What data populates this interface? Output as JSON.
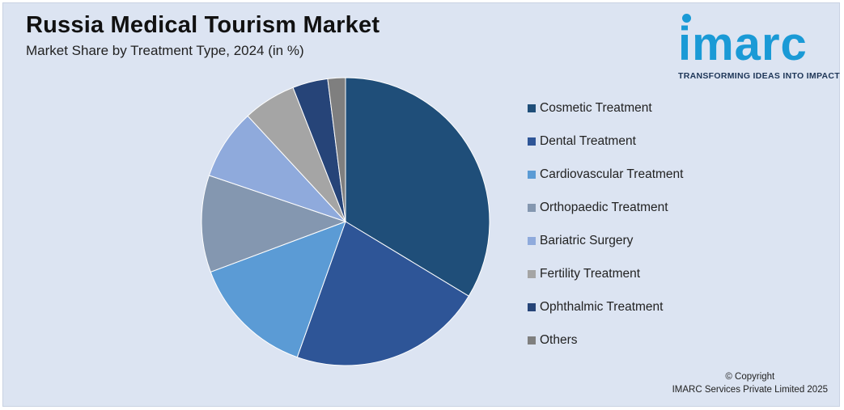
{
  "header": {
    "title": "Russia Medical Tourism Market",
    "subtitle": "Market Share by Treatment Type, 2024 (in %)"
  },
  "logo": {
    "wordmark": "imarc",
    "tagline": "TRANSFORMING IDEAS INTO IMPACT",
    "color": "#1a9ad6"
  },
  "chart_data": {
    "type": "pie",
    "title": "Russia Medical Tourism Market",
    "subtitle": "Market Share by Treatment Type, 2024 (in %)",
    "legend_position": "right",
    "start_angle": "12 o'clock",
    "direction": "clockwise",
    "categories": [
      "Cosmetic Treatment",
      "Dental Treatment",
      "Cardiovascular Treatment",
      "Orthopaedic Treatment",
      "Bariatric Surgery",
      "Fertility Treatment",
      "Ophthalmic Treatment",
      "Others"
    ],
    "values": [
      34,
      22,
      14,
      11,
      8,
      6,
      4,
      2
    ],
    "colors": [
      "#1f4e79",
      "#2e5597",
      "#5b9bd5",
      "#8497b0",
      "#8faadc",
      "#a5a5a5",
      "#264478",
      "#7f7f7f"
    ]
  },
  "footer": {
    "copyright_line1": "© Copyright",
    "copyright_line2": "IMARC Services Private Limited 2025"
  }
}
